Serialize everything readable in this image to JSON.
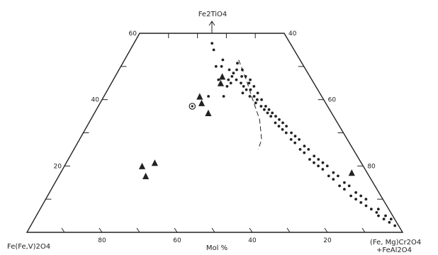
{
  "chart_data": {
    "type": "scatter",
    "subtype": "ternary-composition-plot",
    "grid": false,
    "corner_labels": {
      "left": "Fe(Fe,V)2O4",
      "right_line1": "(Fe, Mg)Cr2O4",
      "right_line2": "+FeAl2O4",
      "top": "Fe2TiO4"
    },
    "axis_label": "Mol %",
    "bottom_ticks": [
      80,
      60,
      40,
      20
    ],
    "left_ticks": [
      60,
      40,
      20
    ],
    "right_ticks": [
      40,
      60,
      80
    ],
    "series": [
      {
        "marker": "dot",
        "points": [
          {
            "x": 48,
            "y": 50
          },
          {
            "x": 47,
            "y": 46
          },
          {
            "x": 49,
            "y": 55
          },
          {
            "x": 50,
            "y": 57
          },
          {
            "x": 44,
            "y": 52
          },
          {
            "x": 45,
            "y": 50
          },
          {
            "x": 41,
            "y": 49
          },
          {
            "x": 42,
            "y": 46
          },
          {
            "x": 43,
            "y": 44
          },
          {
            "x": 40,
            "y": 47
          },
          {
            "x": 41,
            "y": 45
          },
          {
            "x": 39,
            "y": 48
          },
          {
            "x": 38,
            "y": 46
          },
          {
            "x": 36,
            "y": 45
          },
          {
            "x": 35,
            "y": 47
          },
          {
            "x": 37,
            "y": 49
          },
          {
            "x": 36,
            "y": 51
          },
          {
            "x": 34,
            "y": 49
          },
          {
            "x": 33,
            "y": 47
          },
          {
            "x": 32,
            "y": 45
          },
          {
            "x": 35,
            "y": 44
          },
          {
            "x": 34,
            "y": 43
          },
          {
            "x": 36,
            "y": 42
          },
          {
            "x": 31,
            "y": 46
          },
          {
            "x": 30,
            "y": 44
          },
          {
            "x": 32,
            "y": 43
          },
          {
            "x": 29,
            "y": 42
          },
          {
            "x": 31,
            "y": 41
          },
          {
            "x": 33,
            "y": 41
          },
          {
            "x": 30,
            "y": 40
          },
          {
            "x": 28,
            "y": 40
          },
          {
            "x": 29,
            "y": 38
          },
          {
            "x": 31,
            "y": 39
          },
          {
            "x": 27,
            "y": 38
          },
          {
            "x": 26,
            "y": 37
          },
          {
            "x": 28,
            "y": 37
          },
          {
            "x": 25,
            "y": 36
          },
          {
            "x": 27,
            "y": 36
          },
          {
            "x": 24,
            "y": 35
          },
          {
            "x": 26,
            "y": 35
          },
          {
            "x": 23,
            "y": 34
          },
          {
            "x": 25,
            "y": 33
          },
          {
            "x": 22,
            "y": 33
          },
          {
            "x": 24,
            "y": 32
          },
          {
            "x": 21,
            "y": 32
          },
          {
            "x": 23,
            "y": 31
          },
          {
            "x": 20,
            "y": 30
          },
          {
            "x": 22,
            "y": 30
          },
          {
            "x": 19,
            "y": 29
          },
          {
            "x": 21,
            "y": 28
          },
          {
            "x": 18,
            "y": 28
          },
          {
            "x": 20,
            "y": 27
          },
          {
            "x": 17,
            "y": 26
          },
          {
            "x": 19,
            "y": 25
          },
          {
            "x": 16,
            "y": 25
          },
          {
            "x": 18,
            "y": 24
          },
          {
            "x": 15,
            "y": 23
          },
          {
            "x": 17,
            "y": 22
          },
          {
            "x": 14,
            "y": 22
          },
          {
            "x": 16,
            "y": 21
          },
          {
            "x": 13,
            "y": 21
          },
          {
            "x": 15,
            "y": 20
          },
          {
            "x": 12,
            "y": 20
          },
          {
            "x": 14,
            "y": 19
          },
          {
            "x": 11,
            "y": 18
          },
          {
            "x": 13,
            "y": 17
          },
          {
            "x": 10,
            "y": 17
          },
          {
            "x": 12,
            "y": 16
          },
          {
            "x": 9,
            "y": 15
          },
          {
            "x": 11,
            "y": 14
          },
          {
            "x": 8,
            "y": 14
          },
          {
            "x": 10,
            "y": 13
          },
          {
            "x": 7,
            "y": 12
          },
          {
            "x": 9,
            "y": 11
          },
          {
            "x": 6,
            "y": 11
          },
          {
            "x": 8,
            "y": 10
          },
          {
            "x": 5,
            "y": 10
          },
          {
            "x": 7,
            "y": 9
          },
          {
            "x": 6,
            "y": 8
          },
          {
            "x": 5,
            "y": 7
          },
          {
            "x": 4,
            "y": 6
          },
          {
            "x": 3,
            "y": 7
          },
          {
            "x": 4,
            "y": 5
          },
          {
            "x": 2,
            "y": 5
          },
          {
            "x": 3,
            "y": 4
          },
          {
            "x": 1,
            "y": 4
          },
          {
            "x": 2,
            "y": 3
          },
          {
            "x": 1,
            "y": 2
          },
          {
            "x": 45,
            "y": 41
          },
          {
            "x": 52,
            "y": 41
          }
        ]
      },
      {
        "marker": "triangle",
        "points": [
          {
            "x": 74,
            "y": 20
          },
          {
            "x": 70,
            "y": 21
          },
          {
            "x": 72,
            "y": 17
          },
          {
            "x": 56,
            "y": 41
          },
          {
            "x": 55,
            "y": 39
          },
          {
            "x": 52,
            "y": 36
          },
          {
            "x": 46,
            "y": 45
          },
          {
            "x": 45,
            "y": 47
          },
          {
            "x": 5,
            "y": 18
          }
        ]
      },
      {
        "marker": "circled-dot",
        "points": [
          {
            "x": 59,
            "y": 38
          }
        ]
      }
    ],
    "boundary_curve": [
      {
        "x": 35,
        "y": 52
      },
      {
        "x": 33,
        "y": 46
      },
      {
        "x": 32,
        "y": 40
      },
      {
        "x": 31,
        "y": 34
      },
      {
        "x": 32,
        "y": 28
      },
      {
        "x": 34,
        "y": 25
      }
    ]
  }
}
